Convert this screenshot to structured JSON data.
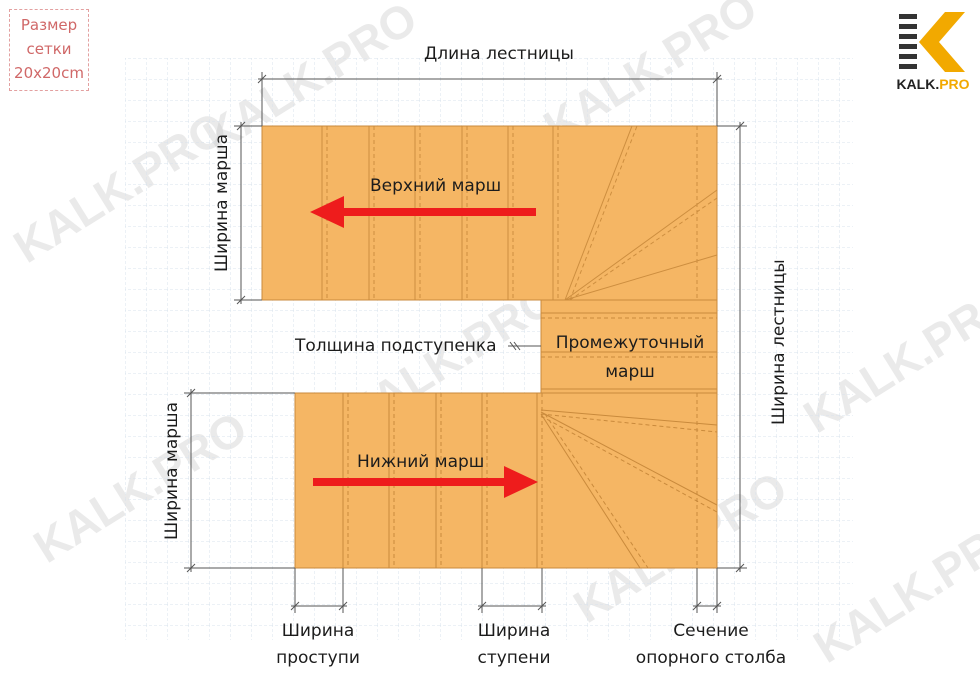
{
  "grid_note": {
    "line1": "Размер",
    "line2": "сетки",
    "line3": "20x20cm"
  },
  "logo": {
    "name": "KALK",
    "dot": ".",
    "suffix": "PRO"
  },
  "watermark": "KALK.PRO",
  "labels": {
    "stair_length": "Длина лестницы",
    "stair_width": "Ширина лестницы",
    "upper_flight_width": "Ширина марша",
    "lower_flight_width": "Ширина марша",
    "upper_flight": "Верхний марш",
    "lower_flight": "Нижний марш",
    "riser_thickness": "Толщина подступенка",
    "intermediate_1": "Промежуточный",
    "intermediate_2": "марш",
    "tread_width_1": "Ширина",
    "tread_width_2": "проступи",
    "step_width_1": "Ширина",
    "step_width_2": "ступени",
    "post_section_1": "Сечение",
    "post_section_2": "опорного столба"
  },
  "colors": {
    "wood": "#f5b664",
    "wood_edge": "#c98a3c",
    "arrow": "#ee1c1c",
    "dim_line": "#555555",
    "grid": "#d9e3ec",
    "accent": "#f2a900"
  }
}
